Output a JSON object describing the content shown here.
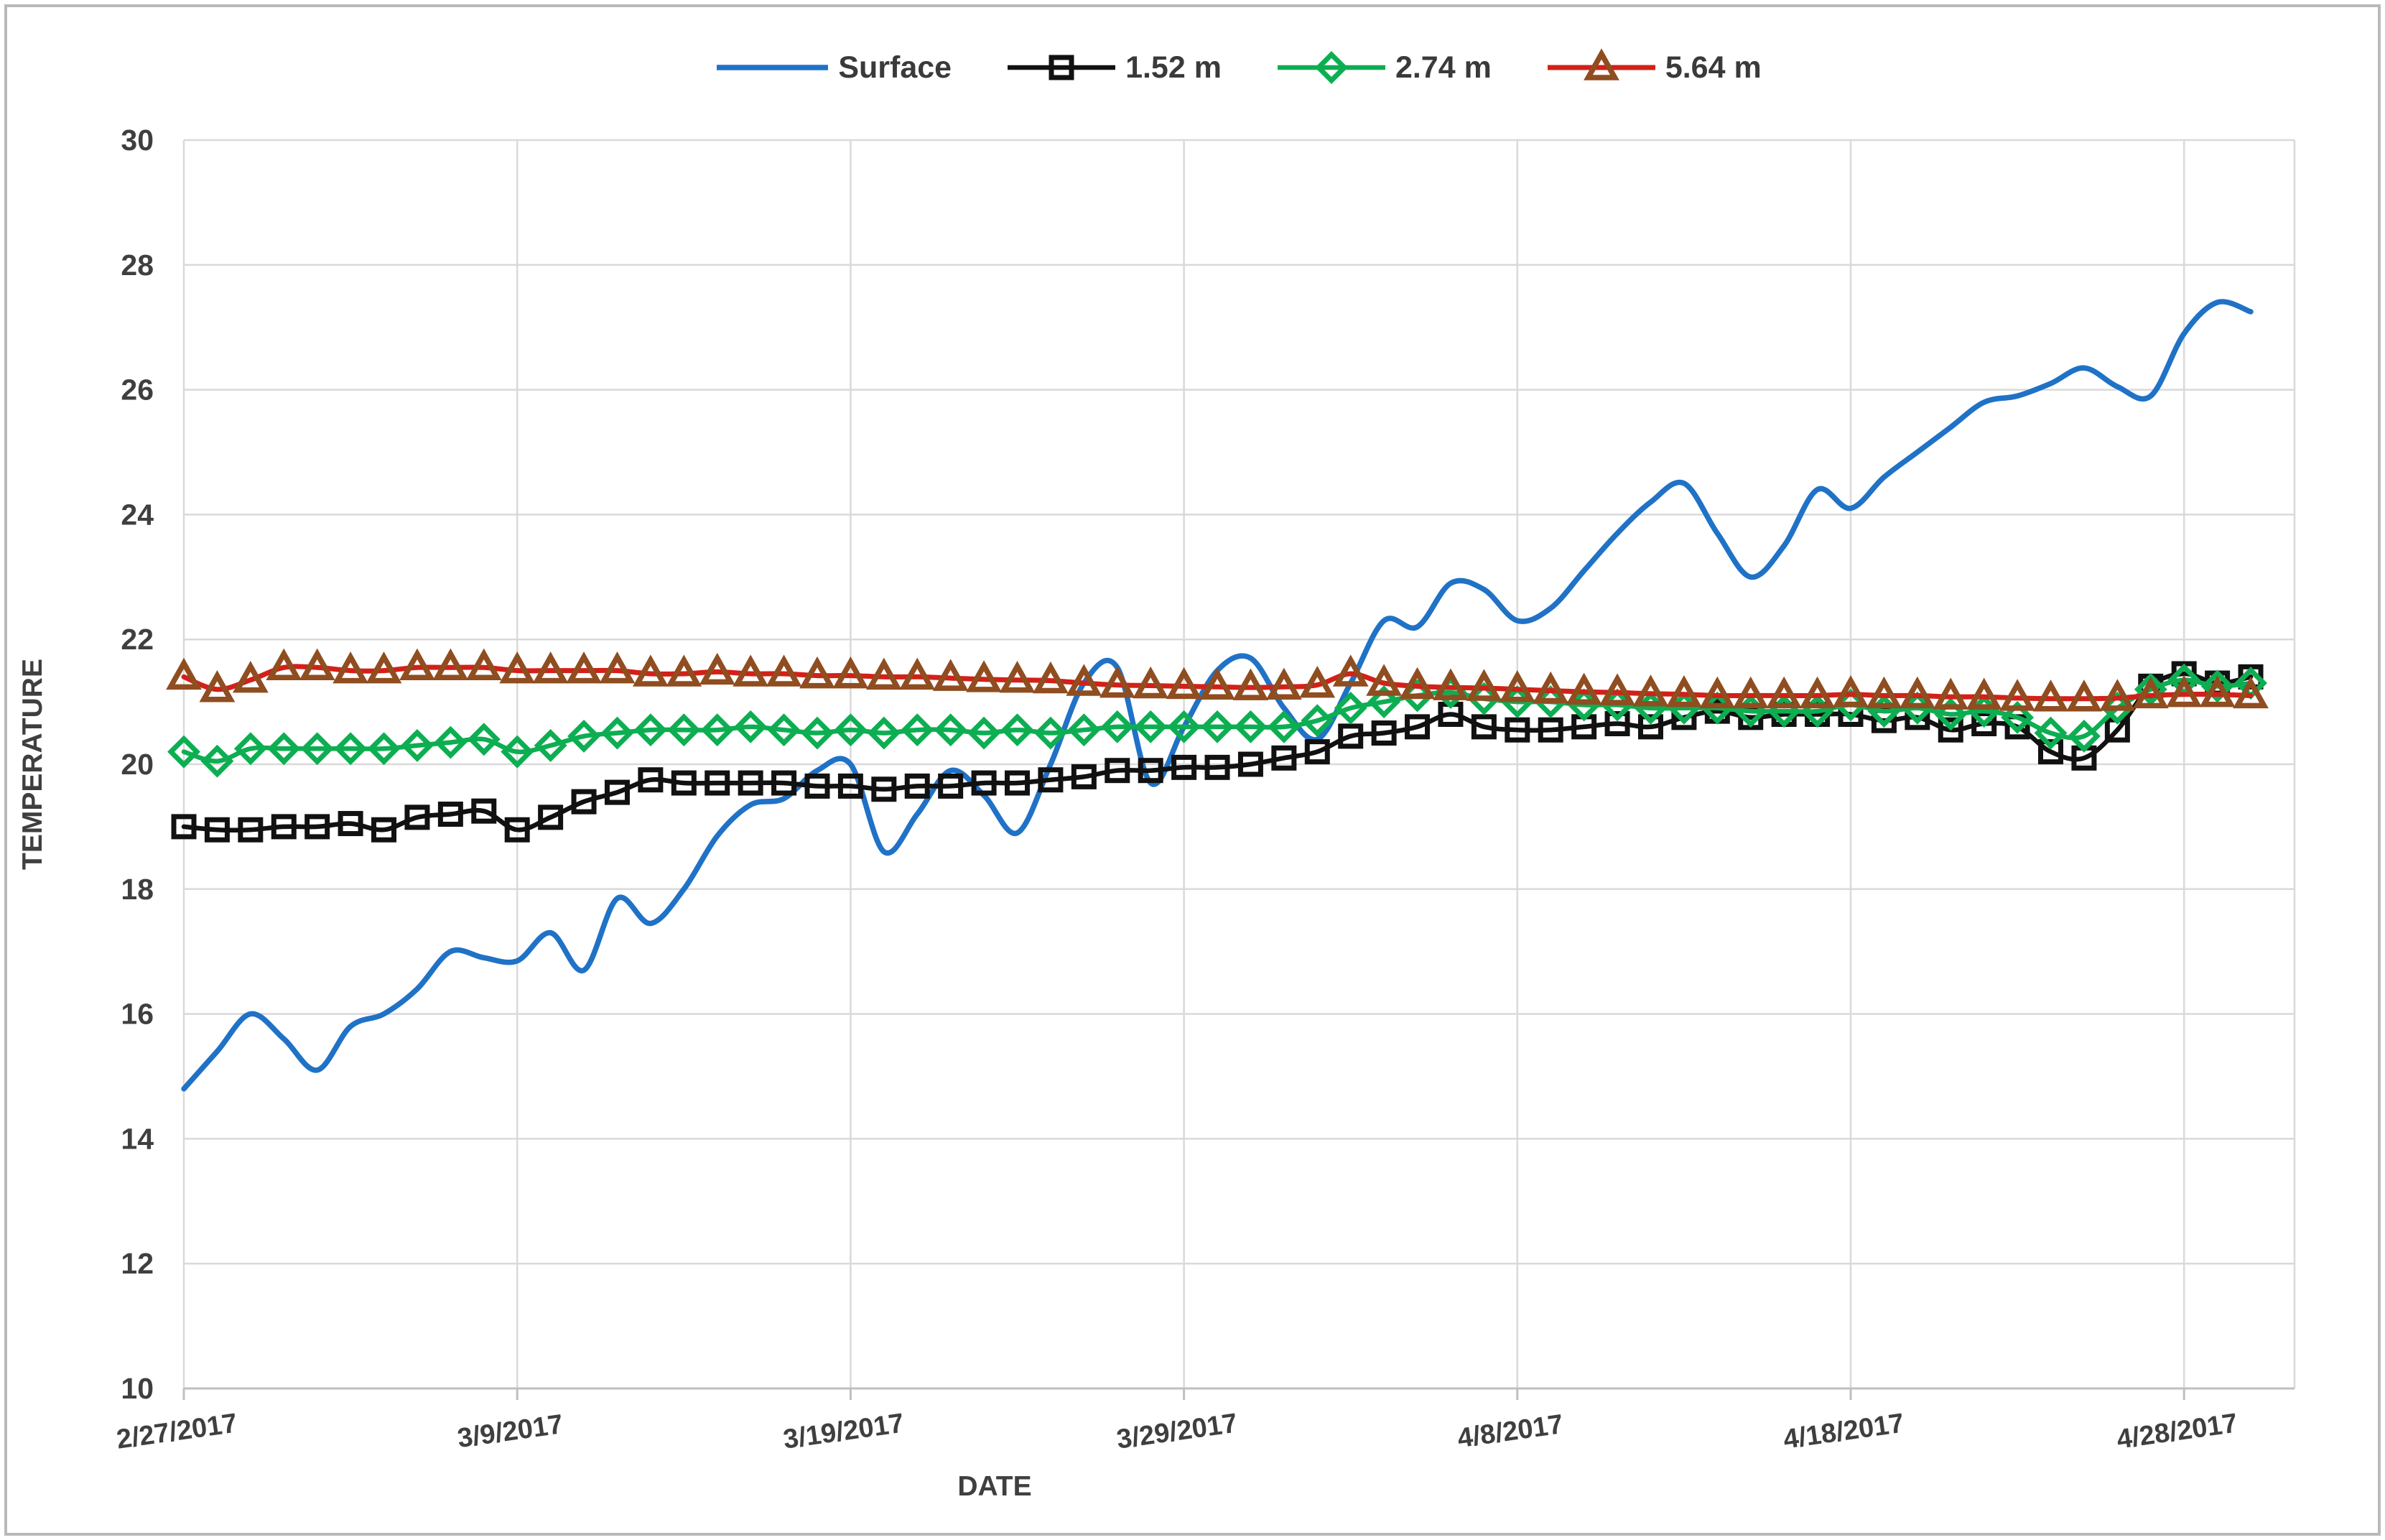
{
  "chart_data": {
    "type": "line",
    "title": "",
    "xlabel": "DATE",
    "ylabel": "TEMPERATURE",
    "ylim": [
      10,
      30
    ],
    "ytick_step": 2,
    "ytick_labels": [
      "10",
      "12",
      "14",
      "16",
      "18",
      "20",
      "22",
      "24",
      "26",
      "28",
      "30"
    ],
    "x_tick_labels": [
      "2/27/2017",
      "3/9/2017",
      "3/19/2017",
      "3/29/2017",
      "4/8/2017",
      "4/18/2017",
      "4/28/2017"
    ],
    "x_tick_indices": [
      0,
      10,
      20,
      30,
      40,
      50,
      60
    ],
    "grid": true,
    "legend_position": "top",
    "grid_color": "#d9d9d9",
    "axis_color": "#bfbfbf",
    "text_color": "#3f3f3f",
    "x_categories": [
      "2/27/2017",
      "2/28/2017",
      "3/1/2017",
      "3/2/2017",
      "3/3/2017",
      "3/4/2017",
      "3/5/2017",
      "3/6/2017",
      "3/7/2017",
      "3/8/2017",
      "3/9/2017",
      "3/10/2017",
      "3/11/2017",
      "3/12/2017",
      "3/13/2017",
      "3/14/2017",
      "3/15/2017",
      "3/16/2017",
      "3/17/2017",
      "3/18/2017",
      "3/19/2017",
      "3/20/2017",
      "3/21/2017",
      "3/22/2017",
      "3/23/2017",
      "3/24/2017",
      "3/25/2017",
      "3/26/2017",
      "3/27/2017",
      "3/28/2017",
      "3/29/2017",
      "3/30/2017",
      "3/31/2017",
      "4/1/2017",
      "4/2/2017",
      "4/3/2017",
      "4/4/2017",
      "4/5/2017",
      "4/6/2017",
      "4/7/2017",
      "4/8/2017",
      "4/9/2017",
      "4/10/2017",
      "4/11/2017",
      "4/12/2017",
      "4/13/2017",
      "4/14/2017",
      "4/15/2017",
      "4/16/2017",
      "4/17/2017",
      "4/18/2017",
      "4/19/2017",
      "4/20/2017",
      "4/21/2017",
      "4/22/2017",
      "4/23/2017",
      "4/24/2017",
      "4/25/2017",
      "4/26/2017",
      "4/27/2017",
      "4/28/2017",
      "4/29/2017",
      "4/30/2017"
    ],
    "series": [
      {
        "name": "Surface",
        "color": "#1f72c6",
        "marker": "none",
        "values": [
          14.8,
          15.4,
          16.0,
          15.6,
          15.1,
          15.8,
          16.0,
          16.4,
          17.0,
          16.9,
          16.85,
          17.3,
          16.7,
          17.85,
          17.45,
          18.0,
          18.85,
          19.35,
          19.45,
          19.9,
          20.0,
          18.6,
          19.2,
          19.9,
          19.5,
          18.9,
          20.0,
          21.3,
          21.55,
          19.7,
          20.6,
          21.5,
          21.7,
          20.9,
          20.4,
          21.3,
          22.3,
          22.2,
          22.9,
          22.8,
          22.3,
          22.5,
          23.1,
          23.7,
          24.2,
          24.5,
          23.7,
          23.0,
          23.5,
          24.4,
          24.1,
          24.6,
          25.0,
          25.4,
          25.8,
          25.9,
          26.1,
          26.35,
          26.05,
          25.9,
          26.9,
          27.4,
          27.25
        ]
      },
      {
        "name": "1.52 m",
        "color": "#111111",
        "marker": "square",
        "marker_color": "#111111",
        "values": [
          19.0,
          18.95,
          18.95,
          19.0,
          19.0,
          19.05,
          18.95,
          19.15,
          19.2,
          19.25,
          18.95,
          19.15,
          19.4,
          19.55,
          19.75,
          19.7,
          19.7,
          19.7,
          19.7,
          19.65,
          19.65,
          19.6,
          19.65,
          19.65,
          19.7,
          19.7,
          19.75,
          19.8,
          19.9,
          19.9,
          19.95,
          19.95,
          20.0,
          20.1,
          20.2,
          20.45,
          20.5,
          20.6,
          20.8,
          20.6,
          20.55,
          20.55,
          20.6,
          20.65,
          20.6,
          20.75,
          20.85,
          20.75,
          20.8,
          20.8,
          20.8,
          20.7,
          20.75,
          20.55,
          20.65,
          20.6,
          20.2,
          20.1,
          20.55,
          21.25,
          21.45,
          21.3,
          21.4
        ]
      },
      {
        "name": "2.74 m",
        "color": "#0dae52",
        "marker": "diamond",
        "marker_color": "#0dae52",
        "values": [
          20.2,
          20.05,
          20.25,
          20.25,
          20.25,
          20.25,
          20.25,
          20.3,
          20.35,
          20.4,
          20.2,
          20.3,
          20.45,
          20.5,
          20.55,
          20.55,
          20.55,
          20.6,
          20.55,
          20.5,
          20.55,
          20.5,
          20.55,
          20.55,
          20.5,
          20.55,
          20.5,
          20.55,
          20.6,
          20.6,
          20.6,
          20.6,
          20.6,
          20.6,
          20.7,
          20.9,
          21.0,
          21.1,
          21.15,
          21.05,
          21.0,
          21.0,
          20.95,
          20.95,
          20.9,
          20.9,
          20.9,
          20.85,
          20.85,
          20.85,
          20.95,
          20.85,
          20.9,
          20.8,
          20.85,
          20.75,
          20.5,
          20.45,
          20.9,
          21.2,
          21.35,
          21.25,
          21.3
        ]
      },
      {
        "name": "5.64 m",
        "color": "#d22118",
        "marker": "triangle",
        "marker_color": "#8f4d20",
        "values": [
          21.4,
          21.2,
          21.35,
          21.55,
          21.55,
          21.5,
          21.5,
          21.55,
          21.55,
          21.55,
          21.5,
          21.5,
          21.5,
          21.5,
          21.45,
          21.45,
          21.48,
          21.45,
          21.45,
          21.42,
          21.42,
          21.4,
          21.4,
          21.38,
          21.36,
          21.35,
          21.34,
          21.3,
          21.27,
          21.26,
          21.25,
          21.24,
          21.23,
          21.24,
          21.27,
          21.45,
          21.3,
          21.25,
          21.23,
          21.22,
          21.2,
          21.18,
          21.16,
          21.15,
          21.13,
          21.12,
          21.1,
          21.1,
          21.1,
          21.1,
          21.12,
          21.1,
          21.1,
          21.08,
          21.08,
          21.06,
          21.05,
          21.05,
          21.06,
          21.1,
          21.12,
          21.12,
          21.1
        ]
      }
    ]
  }
}
